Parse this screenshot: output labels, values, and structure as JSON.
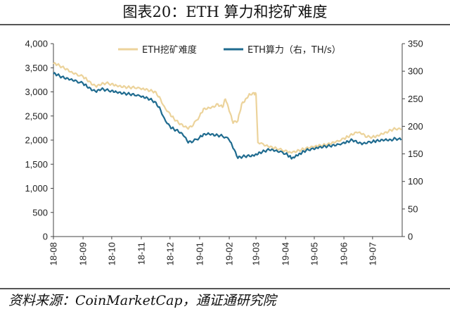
{
  "title": "图表20：ETH 算力和挖矿难度",
  "source": "资料来源：CoinMarketCap，通证通研究院",
  "chart_data": {
    "type": "line",
    "x_ticks": [
      "18-08",
      "18-09",
      "18-10",
      "18-11",
      "18-12",
      "19-01",
      "19-02",
      "19-03",
      "19-04",
      "19-05",
      "19-06",
      "19-07"
    ],
    "x_range": [
      "2018-08-01",
      "2019-08-01"
    ],
    "left_axis": {
      "min": 0,
      "max": 4000,
      "step": 500,
      "tick_labels": [
        "0",
        "500",
        "1,000",
        "1,500",
        "2,000",
        "2,500",
        "3,000",
        "3,500",
        "4,000"
      ]
    },
    "right_axis": {
      "min": 0,
      "max": 350,
      "step": 50,
      "tick_labels": [
        "0",
        "50",
        "100",
        "150",
        "200",
        "250",
        "300",
        "350"
      ]
    },
    "legend_position": "top-center",
    "series": [
      {
        "name": "ETH挖矿难度",
        "axis": "left",
        "color": "#ecd39b",
        "points": [
          [
            "2018-08-01",
            3580
          ],
          [
            "2018-08-05",
            3560
          ],
          [
            "2018-08-10",
            3520
          ],
          [
            "2018-08-15",
            3480
          ],
          [
            "2018-08-20",
            3420
          ],
          [
            "2018-08-25",
            3380
          ],
          [
            "2018-09-01",
            3320
          ],
          [
            "2018-09-05",
            3250
          ],
          [
            "2018-09-10",
            3150
          ],
          [
            "2018-09-15",
            3100
          ],
          [
            "2018-09-20",
            3150
          ],
          [
            "2018-09-25",
            3180
          ],
          [
            "2018-10-01",
            3170
          ],
          [
            "2018-10-05",
            3150
          ],
          [
            "2018-10-10",
            3130
          ],
          [
            "2018-10-15",
            3110
          ],
          [
            "2018-10-20",
            3090
          ],
          [
            "2018-10-25",
            3080
          ],
          [
            "2018-11-01",
            3050
          ],
          [
            "2018-11-05",
            3040
          ],
          [
            "2018-11-10",
            3020
          ],
          [
            "2018-11-15",
            3010
          ],
          [
            "2018-11-20",
            2900
          ],
          [
            "2018-11-25",
            2700
          ],
          [
            "2018-12-01",
            2550
          ],
          [
            "2018-12-05",
            2450
          ],
          [
            "2018-12-10",
            2350
          ],
          [
            "2018-12-15",
            2280
          ],
          [
            "2018-12-20",
            2230
          ],
          [
            "2018-12-25",
            2300
          ],
          [
            "2019-01-01",
            2500
          ],
          [
            "2019-01-05",
            2650
          ],
          [
            "2019-01-10",
            2680
          ],
          [
            "2019-01-15",
            2700
          ],
          [
            "2019-01-20",
            2750
          ],
          [
            "2019-01-25",
            2680
          ],
          [
            "2019-01-28",
            2850
          ],
          [
            "2019-02-01",
            2600
          ],
          [
            "2019-02-05",
            2350
          ],
          [
            "2019-02-10",
            2400
          ],
          [
            "2019-02-14",
            2750
          ],
          [
            "2019-02-18",
            2850
          ],
          [
            "2019-02-22",
            2960
          ],
          [
            "2019-02-27",
            2980
          ],
          [
            "2019-03-01",
            2950
          ],
          [
            "2019-03-03",
            1950
          ],
          [
            "2019-03-10",
            1880
          ],
          [
            "2019-03-15",
            1850
          ],
          [
            "2019-03-20",
            1830
          ],
          [
            "2019-03-25",
            1810
          ],
          [
            "2019-04-01",
            1790
          ],
          [
            "2019-04-05",
            1760
          ],
          [
            "2019-04-10",
            1770
          ],
          [
            "2019-04-15",
            1790
          ],
          [
            "2019-04-20",
            1810
          ],
          [
            "2019-04-25",
            1830
          ],
          [
            "2019-05-01",
            1850
          ],
          [
            "2019-05-05",
            1870
          ],
          [
            "2019-05-10",
            1890
          ],
          [
            "2019-05-15",
            1920
          ],
          [
            "2019-05-20",
            1960
          ],
          [
            "2019-05-25",
            1990
          ],
          [
            "2019-06-01",
            2040
          ],
          [
            "2019-06-05",
            2070
          ],
          [
            "2019-06-10",
            2110
          ],
          [
            "2019-06-15",
            2150
          ],
          [
            "2019-06-20",
            2120
          ],
          [
            "2019-06-25",
            2060
          ],
          [
            "2019-07-01",
            2070
          ],
          [
            "2019-07-05",
            2090
          ],
          [
            "2019-07-10",
            2140
          ],
          [
            "2019-07-15",
            2170
          ],
          [
            "2019-07-20",
            2210
          ],
          [
            "2019-07-25",
            2230
          ],
          [
            "2019-07-31",
            2210
          ]
        ]
      },
      {
        "name": "ETH算力（右，TH/s）",
        "axis": "right",
        "color": "#1f6b8f",
        "points": [
          [
            "2018-08-01",
            295
          ],
          [
            "2018-08-05",
            293
          ],
          [
            "2018-08-10",
            290
          ],
          [
            "2018-08-15",
            288
          ],
          [
            "2018-08-20",
            286
          ],
          [
            "2018-08-25",
            283
          ],
          [
            "2018-09-01",
            278
          ],
          [
            "2018-09-05",
            272
          ],
          [
            "2018-09-10",
            265
          ],
          [
            "2018-09-15",
            262
          ],
          [
            "2018-09-20",
            267
          ],
          [
            "2018-09-25",
            266
          ],
          [
            "2018-10-01",
            265
          ],
          [
            "2018-10-05",
            264
          ],
          [
            "2018-10-10",
            262
          ],
          [
            "2018-10-15",
            260
          ],
          [
            "2018-10-20",
            258
          ],
          [
            "2018-10-25",
            256
          ],
          [
            "2018-11-01",
            253
          ],
          [
            "2018-11-05",
            251
          ],
          [
            "2018-11-10",
            249
          ],
          [
            "2018-11-15",
            245
          ],
          [
            "2018-11-20",
            235
          ],
          [
            "2018-11-25",
            215
          ],
          [
            "2018-12-01",
            200
          ],
          [
            "2018-12-05",
            195
          ],
          [
            "2018-12-10",
            190
          ],
          [
            "2018-12-15",
            183
          ],
          [
            "2018-12-20",
            170
          ],
          [
            "2018-12-25",
            172
          ],
          [
            "2019-01-01",
            180
          ],
          [
            "2019-01-05",
            186
          ],
          [
            "2019-01-10",
            188
          ],
          [
            "2019-01-15",
            186
          ],
          [
            "2019-01-20",
            184
          ],
          [
            "2019-01-25",
            182
          ],
          [
            "2019-02-01",
            175
          ],
          [
            "2019-02-05",
            160
          ],
          [
            "2019-02-10",
            142
          ],
          [
            "2019-02-15",
            145
          ],
          [
            "2019-02-20",
            147
          ],
          [
            "2019-02-25",
            148
          ],
          [
            "2019-03-01",
            150
          ],
          [
            "2019-03-05",
            153
          ],
          [
            "2019-03-10",
            155
          ],
          [
            "2019-03-15",
            157
          ],
          [
            "2019-03-20",
            155
          ],
          [
            "2019-03-25",
            153
          ],
          [
            "2019-04-01",
            150
          ],
          [
            "2019-04-05",
            146
          ],
          [
            "2019-04-08",
            143
          ],
          [
            "2019-04-12",
            148
          ],
          [
            "2019-04-16",
            151
          ],
          [
            "2019-04-20",
            155
          ],
          [
            "2019-04-25",
            157
          ],
          [
            "2019-05-01",
            158
          ],
          [
            "2019-05-05",
            160
          ],
          [
            "2019-05-10",
            162
          ],
          [
            "2019-05-15",
            164
          ],
          [
            "2019-05-20",
            166
          ],
          [
            "2019-05-25",
            168
          ],
          [
            "2019-06-01",
            171
          ],
          [
            "2019-06-05",
            173
          ],
          [
            "2019-06-10",
            175
          ],
          [
            "2019-06-15",
            170
          ],
          [
            "2019-06-20",
            167
          ],
          [
            "2019-06-25",
            169
          ],
          [
            "2019-07-01",
            172
          ],
          [
            "2019-07-05",
            174
          ],
          [
            "2019-07-10",
            176
          ],
          [
            "2019-07-15",
            177
          ],
          [
            "2019-07-20",
            176
          ],
          [
            "2019-07-25",
            178
          ],
          [
            "2019-07-31",
            175
          ]
        ]
      }
    ]
  }
}
